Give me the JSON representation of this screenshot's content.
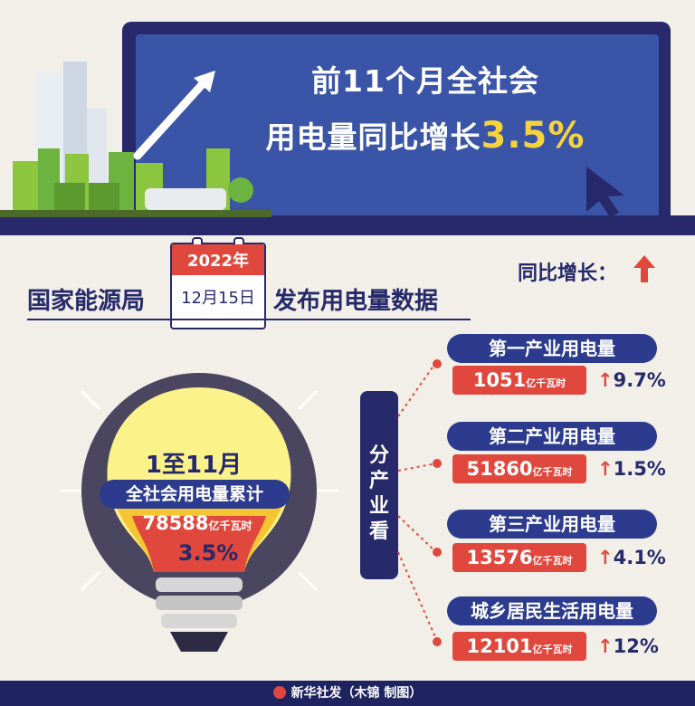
{
  "header": {
    "title_line1": "前11个月全社会",
    "title_line2_prefix": "用电量同比增长",
    "title_line2_highlight": "3.5%"
  },
  "release": {
    "agency": "国家能源局",
    "year": "2022年",
    "date": "12月15日",
    "action": "发布用电量数据"
  },
  "legend": {
    "label": "同比增长："
  },
  "total": {
    "period": "1至11月",
    "label": "全社会用电量累计",
    "value": "78588",
    "unit": "亿千瓦时",
    "growth": "3.5%"
  },
  "breakdown_label": [
    "分",
    "产",
    "业",
    "看"
  ],
  "industries": [
    {
      "title": "第一产业用电量",
      "value": "1051",
      "unit": "亿千瓦时",
      "growth": "9.7%"
    },
    {
      "title": "第二产业用电量",
      "value": "51860",
      "unit": "亿千瓦时",
      "growth": "1.5%"
    },
    {
      "title": "第三产业用电量",
      "value": "13576",
      "unit": "亿千瓦时",
      "growth": "4.1%"
    },
    {
      "title": "城乡居民生活用电量",
      "value": "12101",
      "unit": "亿千瓦时",
      "growth": "12%"
    }
  ],
  "footer": {
    "credit": "新华社发（木锦 制图）"
  },
  "colors": {
    "navy": "#262a6b",
    "blue": "#2d3b8f",
    "red": "#e0483e",
    "yellow": "#f6d23c",
    "cream": "#f2efe8"
  }
}
